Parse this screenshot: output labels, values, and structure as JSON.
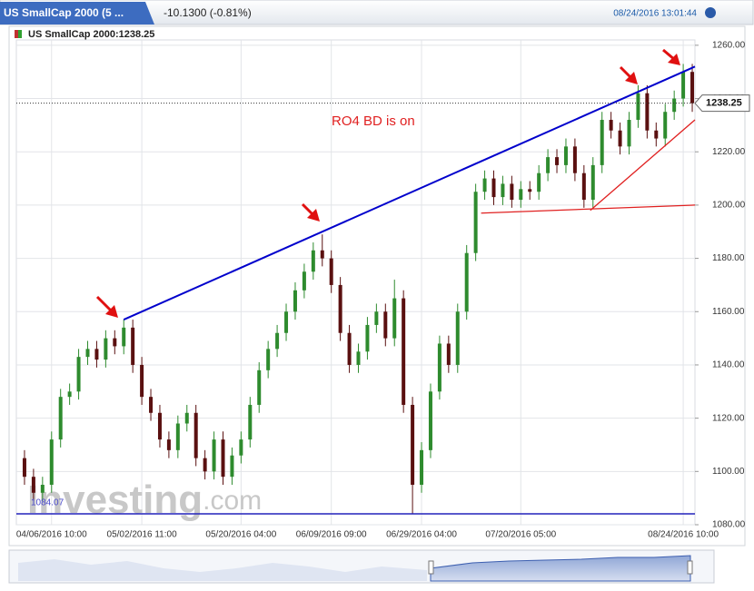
{
  "header": {
    "tab": "US SmallCap 2000 (5 ...",
    "change": "-10.1300 (-0.81%)",
    "timestamp": "08/24/2016 13:01:44"
  },
  "chart_data": {
    "type": "candlestick",
    "title": "US SmallCap 2000:1238.25",
    "categories": [
      null,
      null,
      null,
      "04/06/2016 10:00",
      null,
      null,
      null,
      null,
      null,
      null,
      null,
      null,
      null,
      "05/02/2016 11:00",
      null,
      null,
      null,
      null,
      null,
      null,
      null,
      null,
      null,
      null,
      "05/20/2016 04:00",
      null,
      null,
      null,
      null,
      null,
      null,
      null,
      null,
      null,
      "06/09/2016 09:00",
      null,
      null,
      null,
      null,
      null,
      null,
      null,
      null,
      null,
      "06/29/2016 04:00",
      null,
      null,
      null,
      null,
      null,
      null,
      null,
      null,
      null,
      null,
      "07/20/2016 05:00",
      null,
      null,
      null,
      null,
      null,
      null,
      null,
      null,
      null,
      null,
      null,
      null,
      null,
      null,
      null,
      null,
      null,
      "08/24/2016 10:00",
      null
    ],
    "open": [
      1105,
      1098,
      1092,
      1095,
      1112,
      1128,
      1130,
      1143,
      1146,
      1142,
      1150,
      1147,
      1154,
      1140,
      1128,
      1122,
      1112,
      1108,
      1118,
      1122,
      1105,
      1100,
      1112,
      1098,
      1106,
      1112,
      1125,
      1138,
      1146,
      1152,
      1160,
      1168,
      1175,
      1183,
      1180,
      1170,
      1152,
      1140,
      1145,
      1155,
      1160,
      1150,
      1165,
      1125,
      1095,
      1108,
      1130,
      1148,
      1140,
      1160,
      1182,
      1205,
      1210,
      1203,
      1208,
      1202,
      1206,
      1205,
      1212,
      1218,
      1215,
      1222,
      1212,
      1202,
      1215,
      1232,
      1228,
      1222,
      1232,
      1242,
      1228,
      1225,
      1235,
      1240,
      1250
    ],
    "high": [
      1108,
      1101,
      1098,
      1115,
      1131,
      1133,
      1146,
      1149,
      1149,
      1153,
      1153,
      1157,
      1157,
      1143,
      1131,
      1125,
      1115,
      1121,
      1125,
      1125,
      1108,
      1115,
      1115,
      1109,
      1115,
      1128,
      1141,
      1149,
      1155,
      1163,
      1171,
      1178,
      1186,
      1189,
      1183,
      1173,
      1155,
      1148,
      1158,
      1163,
      1163,
      1172,
      1168,
      1128,
      1111,
      1133,
      1151,
      1151,
      1163,
      1185,
      1208,
      1213,
      1213,
      1211,
      1211,
      1209,
      1209,
      1215,
      1221,
      1221,
      1225,
      1225,
      1215,
      1218,
      1235,
      1235,
      1231,
      1235,
      1245,
      1245,
      1231,
      1238,
      1243,
      1253,
      1253
    ],
    "low": [
      1095,
      1089,
      1089,
      1092,
      1109,
      1125,
      1127,
      1140,
      1139,
      1139,
      1144,
      1144,
      1137,
      1125,
      1119,
      1109,
      1105,
      1105,
      1115,
      1102,
      1097,
      1097,
      1095,
      1095,
      1103,
      1109,
      1122,
      1135,
      1143,
      1149,
      1157,
      1165,
      1172,
      1177,
      1167,
      1149,
      1137,
      1137,
      1142,
      1152,
      1147,
      1147,
      1122,
      1084.07,
      1092,
      1105,
      1127,
      1137,
      1137,
      1157,
      1179,
      1202,
      1200,
      1200,
      1199,
      1199,
      1202,
      1202,
      1209,
      1212,
      1212,
      1209,
      1199,
      1199,
      1212,
      1225,
      1219,
      1219,
      1229,
      1225,
      1222,
      1222,
      1232,
      1237,
      1235
    ],
    "close": [
      1098,
      1092,
      1095,
      1112,
      1128,
      1130,
      1143,
      1146,
      1142,
      1150,
      1147,
      1154,
      1140,
      1128,
      1122,
      1112,
      1108,
      1118,
      1122,
      1105,
      1100,
      1112,
      1098,
      1106,
      1112,
      1125,
      1138,
      1146,
      1152,
      1160,
      1168,
      1175,
      1183,
      1180,
      1170,
      1152,
      1140,
      1145,
      1155,
      1160,
      1150,
      1165,
      1125,
      1095,
      1108,
      1130,
      1148,
      1140,
      1160,
      1182,
      1205,
      1210,
      1203,
      1208,
      1202,
      1206,
      1205,
      1212,
      1218,
      1215,
      1222,
      1212,
      1202,
      1215,
      1232,
      1228,
      1222,
      1232,
      1242,
      1228,
      1225,
      1235,
      1240,
      1250,
      1238.25
    ],
    "up_color": "#2e8b2e",
    "down_color": "#5a1010",
    "ylim": [
      1080,
      1262
    ],
    "yticks": [
      {
        "value": 1080,
        "label": "1080.00"
      },
      {
        "value": 1100,
        "label": "1100.00"
      },
      {
        "value": 1120,
        "label": "1120.00"
      },
      {
        "value": 1140,
        "label": "1140.00"
      },
      {
        "value": 1160,
        "label": "1160.00"
      },
      {
        "value": 1180,
        "label": "1180.00"
      },
      {
        "value": 1200,
        "label": "1200.00"
      },
      {
        "value": 1220,
        "label": "1220.00"
      },
      {
        "value": 1240,
        "label": "1240.00"
      },
      {
        "value": 1260,
        "label": "1260.00"
      }
    ],
    "grid": true,
    "last_price": {
      "value": 1238.25,
      "label": "1238.25"
    },
    "low_marker": {
      "value": 1084.07,
      "label": "1084.07"
    },
    "trendlines": [
      {
        "x0": 11,
        "y0": 1157,
        "x1": 74.3,
        "y1": 1252,
        "color": "#0000cc"
      },
      {
        "x0": 50.6,
        "y0": 1197,
        "x1": 74.3,
        "y1": 1200,
        "color": "#e02020"
      },
      {
        "x0": 62.7,
        "y0": 1198,
        "x1": 74.3,
        "y1": 1232,
        "color": "#e02020"
      }
    ],
    "annotation": "RO4 BD is on",
    "watermark": [
      "Investing",
      ".com"
    ]
  }
}
